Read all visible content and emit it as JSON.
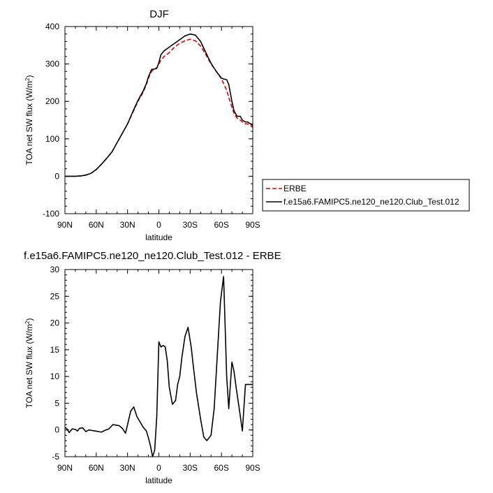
{
  "chart_data": [
    {
      "type": "line",
      "title": "DJF",
      "xlabel": "latitude",
      "ylabel": "TOA net SW flux (W/m",
      "ylabel_sup": "2",
      "ylabel_end": ")",
      "xlim": [
        90,
        -90
      ],
      "ylim": [
        -100,
        400
      ],
      "xticks": [
        {
          "value": 90,
          "label": "90N"
        },
        {
          "value": 60,
          "label": "60N"
        },
        {
          "value": 30,
          "label": "30N"
        },
        {
          "value": 0,
          "label": "0"
        },
        {
          "value": -30,
          "label": "30S"
        },
        {
          "value": -60,
          "label": "60S"
        },
        {
          "value": -90,
          "label": "90S"
        }
      ],
      "yticks": [
        {
          "value": -100,
          "label": "-100"
        },
        {
          "value": 0,
          "label": "0"
        },
        {
          "value": 100,
          "label": "100"
        },
        {
          "value": 200,
          "label": "200"
        },
        {
          "value": 300,
          "label": "300"
        },
        {
          "value": 400,
          "label": "400"
        }
      ],
      "legend": {
        "placement": "right",
        "entries": [
          {
            "label": "ERBE",
            "color": "#e60000",
            "dash": "dashed"
          },
          {
            "label": "f.e15a6.FAMIPC5.ne120_ne120.Club_Test.012",
            "color": "#000000",
            "dash": "solid"
          }
        ]
      },
      "series": [
        {
          "name": "ERBE",
          "color": "#e60000",
          "dash": "dashed",
          "x": [
            90,
            85,
            80,
            75,
            70,
            65,
            60,
            55,
            50,
            45,
            40,
            35,
            30,
            25,
            20,
            15,
            12,
            10,
            7,
            5,
            2,
            0,
            -2,
            -5,
            -10,
            -15,
            -20,
            -25,
            -30,
            -35,
            -40,
            -45,
            -50,
            -55,
            -60,
            -62,
            -65,
            -67,
            -70,
            -72,
            -75,
            -78,
            -80,
            -83,
            -85,
            -88,
            -90
          ],
          "y": [
            0,
            0,
            0,
            1,
            3,
            8,
            18,
            32,
            48,
            65,
            90,
            115,
            140,
            170,
            200,
            225,
            245,
            262,
            280,
            285,
            290,
            300,
            310,
            320,
            330,
            345,
            355,
            362,
            366,
            362,
            348,
            325,
            300,
            280,
            260,
            248,
            230,
            210,
            185,
            168,
            155,
            150,
            145,
            140,
            140,
            135,
            130
          ]
        },
        {
          "name": "f.e15a6.FAMIPC5.ne120_ne120.Club_Test.012",
          "color": "#000000",
          "dash": "solid",
          "x": [
            90,
            85,
            80,
            75,
            70,
            65,
            60,
            55,
            50,
            45,
            40,
            35,
            30,
            25,
            20,
            15,
            12,
            10,
            7,
            5,
            2,
            0,
            -2,
            -5,
            -10,
            -15,
            -20,
            -25,
            -30,
            -35,
            -40,
            -45,
            -50,
            -55,
            -60,
            -62,
            -65,
            -67,
            -70,
            -72,
            -75,
            -78,
            -80,
            -83,
            -85,
            -88,
            -90
          ],
          "y": [
            0,
            0,
            0,
            1,
            3,
            8,
            18,
            32,
            48,
            65,
            90,
            115,
            140,
            172,
            203,
            228,
            248,
            266,
            285,
            286,
            288,
            304,
            325,
            335,
            345,
            355,
            365,
            375,
            380,
            377,
            360,
            330,
            302,
            280,
            262,
            260,
            258,
            245,
            200,
            175,
            160,
            160,
            150,
            145,
            145,
            140,
            135
          ]
        }
      ]
    },
    {
      "type": "line",
      "title": "f.e15a6.FAMIPC5.ne120_ne120.Club_Test.012 - ERBE",
      "xlabel": "latitude",
      "ylabel": "TOA net SW flux (W/m",
      "ylabel_sup": "2",
      "ylabel_end": ")",
      "xlim": [
        90,
        -90
      ],
      "ylim": [
        -5,
        30
      ],
      "xticks": [
        {
          "value": 90,
          "label": "90N"
        },
        {
          "value": 60,
          "label": "60N"
        },
        {
          "value": 30,
          "label": "30N"
        },
        {
          "value": 0,
          "label": "0"
        },
        {
          "value": -30,
          "label": "30S"
        },
        {
          "value": -60,
          "label": "60S"
        },
        {
          "value": -90,
          "label": "90S"
        }
      ],
      "yticks": [
        {
          "value": -5,
          "label": "-5"
        },
        {
          "value": 0,
          "label": "0"
        },
        {
          "value": 5,
          "label": "5"
        },
        {
          "value": 10,
          "label": "10"
        },
        {
          "value": 15,
          "label": "15"
        },
        {
          "value": 20,
          "label": "20"
        },
        {
          "value": 25,
          "label": "25"
        },
        {
          "value": 30,
          "label": "30"
        }
      ],
      "series": [
        {
          "color": "#000000",
          "dash": "solid",
          "x": [
            90,
            88,
            86,
            83,
            80,
            78,
            76,
            73,
            70,
            67,
            64,
            61,
            58,
            55,
            52,
            48,
            44,
            41,
            38,
            35,
            32,
            30,
            27,
            24,
            21,
            18,
            15,
            12,
            10,
            8,
            6,
            4,
            2,
            0,
            -2,
            -4,
            -6,
            -8,
            -10,
            -13,
            -16,
            -18,
            -20,
            -22,
            -25,
            -28,
            -31,
            -33,
            -36,
            -40,
            -43,
            -46,
            -50,
            -53,
            -56,
            -59,
            -62,
            -64,
            -65,
            -67,
            -70,
            -72,
            -74,
            -77,
            -80,
            -83,
            -86,
            -88,
            -90
          ],
          "y": [
            0.5,
            0.2,
            -0.5,
            0.2,
            0.1,
            -0.2,
            0.3,
            0.4,
            -0.3,
            0,
            -0.1,
            -0.2,
            -0.3,
            -0.4,
            -0.1,
            0.2,
            1,
            0.9,
            0.8,
            0.3,
            -0.6,
            1,
            3.5,
            4.3,
            2.5,
            1.5,
            0.5,
            -0.2,
            -1.5,
            -3,
            -5,
            -3.8,
            2.5,
            16.5,
            15.5,
            15.8,
            15.6,
            13,
            8,
            4.8,
            5.5,
            8.5,
            10,
            13.5,
            17.5,
            19.2,
            15.5,
            12,
            7,
            2,
            -1.3,
            -2,
            -1,
            4,
            14,
            24,
            28.7,
            16.5,
            10,
            4,
            12.7,
            11,
            8,
            4,
            -0.2,
            8.5,
            8.5,
            8.5,
            8.5
          ]
        }
      ]
    }
  ]
}
